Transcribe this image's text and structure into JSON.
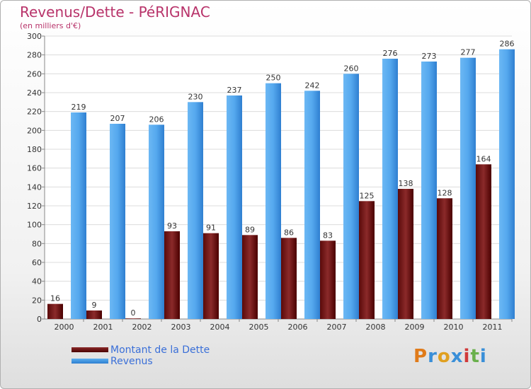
{
  "title": "Revenus/Dette - PéRIGNAC",
  "subtitle": "(en milliers d'€)",
  "logo_text": "Proxiti",
  "colors": {
    "debt_top": "#8b2a2a",
    "debt_bottom": "#4a0000",
    "revenue_top": "#5aaef0",
    "revenue_bottom": "#2f7fd0",
    "title": "#b8336a",
    "legend_text": "#3a6fd8"
  },
  "chart_data": {
    "type": "bar",
    "title": "Revenus/Dette - PéRIGNAC",
    "ylabel": "(en milliers d'€)",
    "xlabel": "",
    "ylim": [
      0,
      300
    ],
    "y_ticks": [
      0,
      20,
      40,
      60,
      80,
      100,
      120,
      140,
      160,
      180,
      200,
      220,
      240,
      260,
      280,
      300
    ],
    "categories": [
      "2000",
      "2001",
      "2002",
      "2003",
      "2004",
      "2005",
      "2006",
      "2007",
      "2008",
      "2009",
      "2010",
      "2011"
    ],
    "series": [
      {
        "name": "Montant de la Dette",
        "values": [
          16,
          9,
          0,
          93,
          91,
          89,
          86,
          83,
          125,
          138,
          128,
          164
        ]
      },
      {
        "name": "Revenus",
        "values": [
          219,
          207,
          206,
          230,
          237,
          250,
          242,
          260,
          276,
          273,
          277,
          286
        ]
      }
    ],
    "legend_position": "bottom-left",
    "grid": true
  }
}
